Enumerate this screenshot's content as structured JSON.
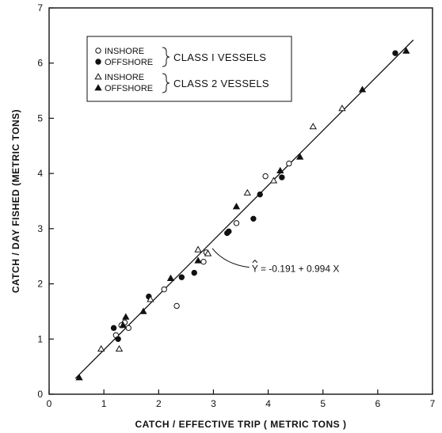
{
  "chart_data": {
    "type": "scatter",
    "title": "",
    "xlabel": "CATCH / EFFECTIVE TRIP ( METRIC TONS )",
    "ylabel": "CATCH / DAY FISHED  (METRIC TONS)",
    "xlim": [
      0,
      7
    ],
    "ylim": [
      0,
      7
    ],
    "xticks": [
      "0",
      "1",
      "2",
      "3",
      "4",
      "5",
      "6",
      "7"
    ],
    "yticks": [
      "0",
      "1",
      "2",
      "3",
      "4",
      "5",
      "6",
      "7"
    ],
    "grid": false,
    "legend": {
      "placement": "top-left",
      "groups": [
        {
          "label": "CLASS I VESSELS",
          "entries": [
            {
              "marker": "open-circle",
              "label": "INSHORE"
            },
            {
              "marker": "filled-circle",
              "label": "OFFSHORE"
            }
          ]
        },
        {
          "label": "CLASS 2 VESSELS",
          "entries": [
            {
              "marker": "open-triangle",
              "label": "INSHORE"
            },
            {
              "marker": "filled-triangle",
              "label": "OFFSHORE"
            }
          ]
        }
      ]
    },
    "regression": {
      "equation": "Y = -0.191 + 0.994 X",
      "intercept": -0.191,
      "slope": 0.994,
      "x_range": [
        0.48,
        6.65
      ],
      "label_anchor": [
        3.7,
        2.27
      ],
      "arrow_target": [
        2.95,
        2.7
      ]
    },
    "series": [
      {
        "name": "INSHORE",
        "vessel_class": "CLASS I VESSELS",
        "marker": "open-circle",
        "x": [
          1.22,
          1.32,
          1.38,
          1.45,
          2.1,
          2.33,
          2.82,
          2.87,
          3.42,
          3.95,
          4.38
        ],
        "y": [
          1.07,
          1.25,
          1.3,
          1.2,
          1.9,
          1.6,
          2.4,
          2.57,
          3.1,
          3.95,
          4.18
        ]
      },
      {
        "name": "OFFSHORE",
        "vessel_class": "CLASS I VESSELS",
        "marker": "filled-circle",
        "x": [
          1.18,
          1.26,
          1.82,
          2.42,
          2.65,
          3.25,
          3.28,
          3.73,
          3.85,
          4.25,
          6.32
        ],
        "y": [
          1.2,
          1.0,
          1.77,
          2.12,
          2.2,
          2.92,
          2.95,
          3.18,
          3.62,
          3.93,
          6.18
        ]
      },
      {
        "name": "INSHORE",
        "vessel_class": "CLASS 2 VESSELS",
        "marker": "open-triangle",
        "x": [
          0.95,
          1.28,
          1.85,
          2.72,
          2.9,
          3.62,
          4.1,
          4.82,
          5.35
        ],
        "y": [
          0.82,
          0.82,
          1.72,
          2.62,
          2.55,
          3.65,
          3.87,
          4.85,
          5.18
        ]
      },
      {
        "name": "OFFSHORE",
        "vessel_class": "CLASS 2 VESSELS",
        "marker": "filled-triangle",
        "x": [
          0.55,
          1.35,
          1.4,
          1.72,
          2.22,
          2.72,
          3.42,
          4.22,
          4.58,
          5.72,
          6.52
        ],
        "y": [
          0.3,
          1.25,
          1.4,
          1.5,
          2.1,
          2.42,
          3.4,
          4.05,
          4.3,
          5.52,
          6.22
        ]
      }
    ]
  }
}
